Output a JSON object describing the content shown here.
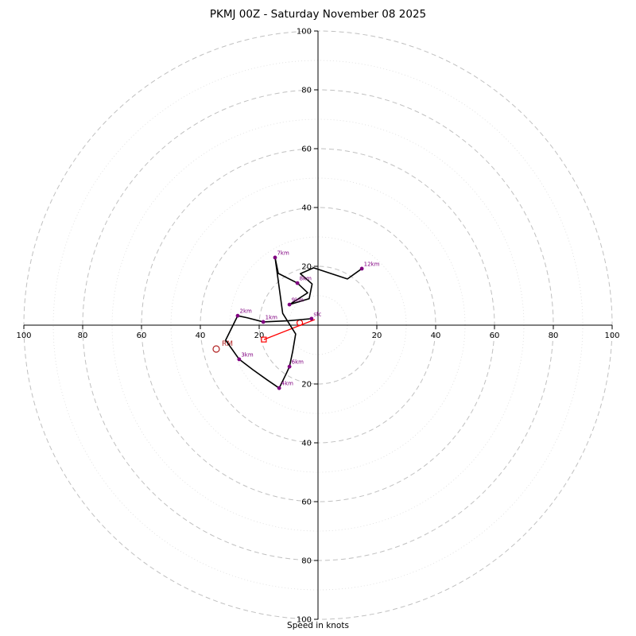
{
  "chart_data": {
    "type": "line",
    "subtype": "hodograph",
    "title": "PKMJ 00Z - Saturday November 08 2025",
    "xlabel": "Speed in knots",
    "units": "knots",
    "axis_range": [
      -100,
      100
    ],
    "ring_major": [
      20,
      40,
      60,
      80,
      100
    ],
    "ring_minor": [
      10,
      30,
      50,
      70,
      90
    ],
    "tick_labels": [
      20,
      40,
      60,
      80,
      100
    ],
    "grid": "polar-dashed",
    "legend": "none",
    "trace": [
      {
        "label": "sfc",
        "u": -2.2,
        "v": 2.2,
        "marker": true
      },
      {
        "u": -10,
        "v": 1.5
      },
      {
        "label": "1km",
        "u": -18.6,
        "v": 1.1,
        "marker": true
      },
      {
        "u": -24,
        "v": 2.5
      },
      {
        "label": "2km",
        "u": -27.3,
        "v": 3.2,
        "marker": true
      },
      {
        "u": -31.4,
        "v": -5.1
      },
      {
        "label": "3km",
        "u": -26.8,
        "v": -11.6,
        "marker": true
      },
      {
        "u": -22.2,
        "v": -15.1
      },
      {
        "u": -17.3,
        "v": -18.6
      },
      {
        "label": "4km",
        "u": -13.2,
        "v": -21.4,
        "marker": true
      },
      {
        "u": -10.8,
        "v": -16.5
      },
      {
        "label": "6km",
        "u": -9.7,
        "v": -14.1,
        "marker": true
      },
      {
        "u": -8.6,
        "v": -8.9
      },
      {
        "u": -7.6,
        "v": -3.0
      },
      {
        "u": -12,
        "v": 4
      },
      {
        "u": -13.5,
        "v": 15
      },
      {
        "label": "7km",
        "u": -14.6,
        "v": 23.0,
        "marker": true
      },
      {
        "u": -13.5,
        "v": 17.6
      },
      {
        "label": "8km",
        "u": -7.0,
        "v": 14.3,
        "marker": true
      },
      {
        "u": -3.5,
        "v": 11
      },
      {
        "label": "9km",
        "u": -9.7,
        "v": 7.0,
        "marker": true
      },
      {
        "u": -3,
        "v": 9
      },
      {
        "u": -2,
        "v": 14
      },
      {
        "u": -6,
        "v": 17.5
      },
      {
        "u": -1.5,
        "v": 19.5
      },
      {
        "u": 10,
        "v": 15.7
      },
      {
        "label": "12km",
        "u": 14.9,
        "v": 19.2,
        "marker": true
      }
    ],
    "storm_motion": {
      "rm_label": "RM",
      "rm": {
        "u": -34.6,
        "v": -8.1
      },
      "vector": [
        {
          "u": -18.4,
          "v": -4.9
        },
        {
          "u": -1.1,
          "v": 1.9
        }
      ],
      "square_marker": {
        "u": -18.4,
        "v": -4.9
      },
      "circle_marker": {
        "u": -6.2,
        "v": 0.8
      }
    },
    "colors": {
      "trace": "#000000",
      "height_marker": "#800080",
      "storm_vector": "#ff0000",
      "right_mover": "#b22222",
      "ring_major": "#c0c0c0",
      "ring_minor": "#dcdcdc",
      "axis": "#000000"
    }
  }
}
